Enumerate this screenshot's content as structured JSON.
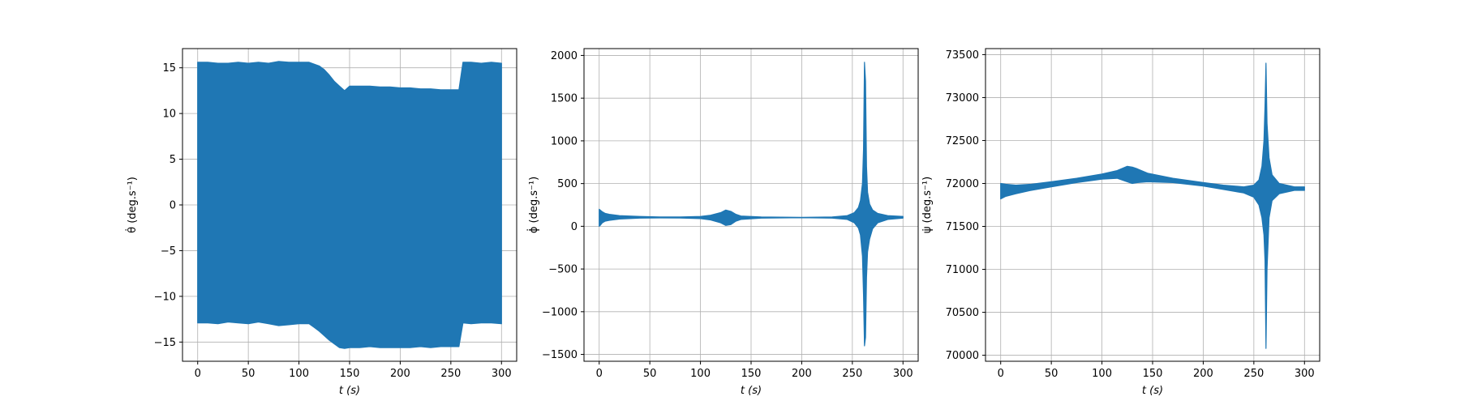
{
  "chart_data": [
    {
      "type": "line",
      "ylabel": "θ̇ (deg.s⁻¹)",
      "xlabel": "t (s)",
      "xlim": [
        -15,
        315
      ],
      "ylim": [
        -17.1,
        17.1
      ],
      "xticks": [
        0,
        50,
        100,
        150,
        200,
        250,
        300
      ],
      "yticks": [
        -15,
        -10,
        -5,
        0,
        5,
        10,
        15
      ],
      "grid": true,
      "color": "#1f77b4",
      "series": [
        {
          "name": "",
          "x": [
            0,
            10,
            20,
            30,
            40,
            50,
            60,
            70,
            80,
            90,
            100,
            110,
            115,
            120,
            125,
            130,
            135,
            140,
            145,
            150,
            160,
            170,
            180,
            190,
            200,
            210,
            220,
            230,
            240,
            250,
            258,
            262,
            270,
            280,
            290,
            300
          ],
          "upper": [
            15.6,
            15.6,
            15.5,
            15.5,
            15.6,
            15.5,
            15.6,
            15.5,
            15.7,
            15.6,
            15.6,
            15.6,
            15.4,
            15.2,
            14.8,
            14.2,
            13.5,
            13.0,
            12.5,
            13.0,
            13.0,
            13.0,
            12.9,
            12.9,
            12.8,
            12.8,
            12.7,
            12.7,
            12.6,
            12.6,
            12.6,
            15.6,
            15.6,
            15.5,
            15.6,
            15.5
          ],
          "lower": [
            -12.9,
            -12.9,
            -13.0,
            -12.8,
            -12.9,
            -13.0,
            -12.8,
            -13.0,
            -13.2,
            -13.1,
            -13.0,
            -13.0,
            -13.4,
            -13.8,
            -14.3,
            -14.8,
            -15.2,
            -15.6,
            -15.7,
            -15.6,
            -15.6,
            -15.5,
            -15.6,
            -15.6,
            -15.6,
            -15.6,
            -15.5,
            -15.6,
            -15.5,
            -15.5,
            -15.5,
            -12.9,
            -13.0,
            -12.9,
            -12.9,
            -13.0
          ]
        }
      ]
    },
    {
      "type": "line",
      "ylabel": "ϕ̇ (deg.s⁻¹)",
      "xlabel": "t (s)",
      "xlim": [
        -15,
        315
      ],
      "ylim": [
        -1580,
        2080
      ],
      "xticks": [
        0,
        50,
        100,
        150,
        200,
        250,
        300
      ],
      "yticks": [
        -1500,
        -1000,
        -500,
        0,
        500,
        1000,
        1500,
        2000
      ],
      "grid": true,
      "color": "#1f77b4",
      "series": [
        {
          "name": "",
          "x": [
            0,
            1,
            3,
            6,
            10,
            20,
            40,
            60,
            80,
            100,
            110,
            120,
            125,
            130,
            135,
            140,
            160,
            200,
            230,
            245,
            252,
            256,
            258,
            260,
            261,
            262,
            263,
            264,
            265,
            267,
            270,
            275,
            285,
            300
          ],
          "upper": [
            200,
            190,
            170,
            150,
            140,
            125,
            115,
            110,
            110,
            115,
            130,
            160,
            190,
            175,
            140,
            120,
            110,
            105,
            110,
            125,
            160,
            220,
            300,
            500,
            900,
            1920,
            1700,
            700,
            400,
            260,
            190,
            150,
            125,
            115
          ],
          "lower": [
            0,
            10,
            40,
            60,
            70,
            85,
            95,
            98,
            97,
            90,
            75,
            40,
            10,
            20,
            60,
            80,
            95,
            100,
            95,
            80,
            40,
            -20,
            -100,
            -350,
            -800,
            -1400,
            -1300,
            -600,
            -300,
            -150,
            -30,
            40,
            80,
            95
          ]
        }
      ]
    },
    {
      "type": "line",
      "ylabel": "ψ̇ (deg.s⁻¹)",
      "xlabel": "t (s)",
      "xlim": [
        -15,
        315
      ],
      "ylim": [
        69930,
        73570
      ],
      "xticks": [
        0,
        50,
        100,
        150,
        200,
        250,
        300
      ],
      "yticks": [
        70000,
        70500,
        71000,
        71500,
        72000,
        72500,
        73000,
        73500
      ],
      "grid": true,
      "color": "#1f77b4",
      "series": [
        {
          "name": "",
          "x": [
            0,
            5,
            15,
            30,
            50,
            75,
            100,
            115,
            125,
            130,
            135,
            145,
            170,
            200,
            220,
            240,
            250,
            255,
            258,
            260,
            261,
            262,
            263,
            265,
            268,
            275,
            290,
            300
          ],
          "upper": [
            72000,
            71990,
            71980,
            71990,
            72020,
            72060,
            72110,
            72150,
            72200,
            72190,
            72170,
            72120,
            72060,
            72010,
            71980,
            71960,
            71980,
            72040,
            72200,
            72500,
            72900,
            73400,
            72700,
            72300,
            72100,
            72000,
            71960,
            71960
          ],
          "lower": [
            71820,
            71850,
            71880,
            71920,
            71960,
            72010,
            72050,
            72060,
            72020,
            72000,
            72010,
            72020,
            72010,
            71970,
            71930,
            71890,
            71840,
            71750,
            71600,
            71400,
            71100,
            70080,
            71000,
            71600,
            71800,
            71880,
            71920,
            71920
          ]
        }
      ]
    }
  ]
}
